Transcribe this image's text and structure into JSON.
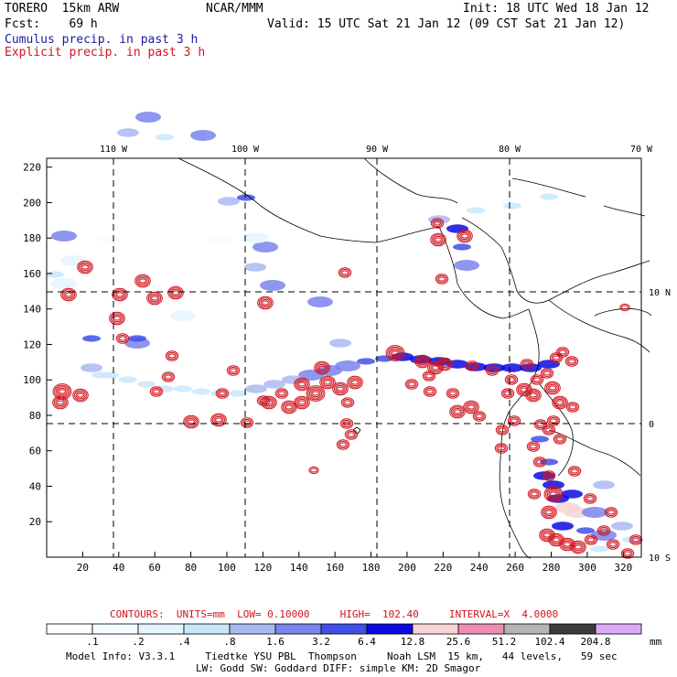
{
  "header": {
    "model": "TORERO  15km ARW",
    "org": "NCAR/MMM",
    "init": "Init: 18 UTC Wed 18 Jan 12",
    "fcst": "Fcst:    69 h",
    "valid": "Valid: 15 UTC Sat 21 Jan 12 (09 CST Sat 21 Jan 12)",
    "line1": "Cumulus precip. in past 3 h",
    "line2": "Explicit precip. in past 3 h",
    "line1_color": "#1a1aa0",
    "line2_color": "#d0141e"
  },
  "chart_data": {
    "type": "heatmap",
    "title": "",
    "xlim": [
      0,
      330
    ],
    "ylim": [
      0,
      225
    ],
    "x_ticks": [
      "20",
      "40",
      "60",
      "80",
      "100",
      "120",
      "140",
      "160",
      "180",
      "200",
      "220",
      "240",
      "260",
      "280",
      "300",
      "320"
    ],
    "y_ticks": [
      "20",
      "40",
      "60",
      "80",
      "100",
      "120",
      "140",
      "160",
      "180",
      "200",
      "220"
    ],
    "lon_labels": [
      "110 W",
      "100 W",
      "90 W",
      "80 W",
      "70 W"
    ],
    "lat_labels": [
      "10 N",
      "0",
      "10 S"
    ],
    "contours": {
      "label": "CONTOURS:  UNITS=mm  LOW= 0.10000     HIGH=  102.40     INTERVAL=X  4.0000"
    },
    "colorbar": {
      "levels": [
        ".1",
        ".2",
        ".4",
        ".8",
        "1.6",
        "3.2",
        "6.4",
        "12.8",
        "25.6",
        "51.2",
        "102.4",
        "204.8"
      ],
      "units": "mm",
      "colors": [
        "#ffffff",
        "#f4fbff",
        "#e4f4ff",
        "#c9e6fb",
        "#aab8f2",
        "#7a84ec",
        "#4050e8",
        "#0a0ae0",
        "#f8d4d4",
        "#f08cb4",
        "#b4b4b4",
        "#3c3c3c",
        "#dca8f8"
      ]
    },
    "cells": [
      [
        70,
        258,
        5
      ],
      [
        140,
        145,
        4
      ],
      [
        162,
        128,
        5
      ],
      [
        180,
        150,
        3
      ],
      [
        222,
        148,
        5
      ],
      [
        250,
        220,
        4
      ],
      [
        279,
        292,
        4
      ],
      [
        269,
        216,
        6
      ],
      [
        290,
        270,
        5
      ],
      [
        298,
        312,
        5
      ],
      [
        350,
        330,
        5
      ],
      [
        372,
        375,
        4
      ],
      [
        280,
        260,
        2
      ],
      [
        240,
        262,
        1
      ],
      [
        80,
        285,
        2
      ],
      [
        120,
        262,
        1
      ],
      [
        100,
        402,
        4
      ],
      [
        120,
        410,
        3
      ],
      [
        150,
        375,
        5
      ],
      [
        150,
        370,
        6
      ],
      [
        100,
        370,
        6
      ],
      [
        60,
        300,
        3
      ],
      [
        70,
        310,
        2
      ],
      [
        200,
        345,
        2
      ],
      [
        400,
        395,
        6
      ],
      [
        420,
        392,
        6
      ],
      [
        440,
        390,
        7
      ],
      [
        460,
        393,
        7
      ],
      [
        480,
        395,
        7
      ],
      [
        500,
        398,
        7
      ],
      [
        520,
        401,
        7
      ],
      [
        540,
        402,
        7
      ],
      [
        560,
        402,
        7
      ],
      [
        580,
        402,
        7
      ],
      [
        600,
        398,
        7
      ],
      [
        380,
        400,
        5
      ],
      [
        360,
        405,
        5
      ],
      [
        340,
        410,
        5
      ],
      [
        320,
        415,
        4
      ],
      [
        300,
        420,
        4
      ],
      [
        280,
        425,
        4
      ],
      [
        260,
        430,
        3
      ],
      [
        240,
        430,
        3
      ],
      [
        220,
        428,
        3
      ],
      [
        200,
        425,
        3
      ],
      [
        180,
        425,
        3
      ],
      [
        160,
        420,
        3
      ],
      [
        140,
        415,
        3
      ],
      [
        110,
        410,
        3
      ],
      [
        500,
        250,
        7
      ],
      [
        505,
        270,
        6
      ],
      [
        510,
        290,
        5
      ],
      [
        480,
        240,
        4
      ],
      [
        520,
        230,
        3
      ],
      [
        560,
        225,
        3
      ],
      [
        600,
        215,
        3
      ],
      [
        590,
        480,
        6
      ],
      [
        595,
        520,
        7
      ],
      [
        610,
        545,
        7
      ],
      [
        620,
        555,
        8
      ],
      [
        630,
        560,
        8
      ],
      [
        615,
        575,
        7
      ],
      [
        640,
        580,
        6
      ],
      [
        660,
        585,
        5
      ],
      [
        600,
        505,
        6
      ],
      [
        605,
        530,
        7
      ],
      [
        625,
        540,
        7
      ],
      [
        650,
        560,
        5
      ],
      [
        680,
        575,
        4
      ],
      [
        690,
        590,
        3
      ],
      [
        655,
        600,
        3
      ],
      [
        660,
        530,
        4
      ]
    ],
    "explicit_rings": [
      [
        93,
        292,
        4
      ],
      [
        75,
        322,
        4
      ],
      [
        131,
        322,
        4
      ],
      [
        169,
        326,
        4
      ],
      [
        192,
        320,
        4
      ],
      [
        128,
        348,
        4
      ],
      [
        156,
        307,
        4
      ],
      [
        134,
        370,
        3
      ],
      [
        290,
        331,
        4
      ],
      [
        188,
        389,
        3
      ],
      [
        255,
        405,
        3
      ],
      [
        184,
        412,
        3
      ],
      [
        171,
        428,
        3
      ],
      [
        68,
        428,
        5
      ],
      [
        88,
        432,
        4
      ],
      [
        66,
        440,
        4
      ],
      [
        209,
        461,
        4
      ],
      [
        239,
        459,
        4
      ],
      [
        270,
        462,
        3
      ],
      [
        243,
        430,
        3
      ],
      [
        294,
        440,
        4
      ],
      [
        316,
        445,
        4
      ],
      [
        330,
        440,
        4
      ],
      [
        345,
        430,
        5
      ],
      [
        358,
        418,
        4
      ],
      [
        372,
        425,
        4
      ],
      [
        388,
        418,
        4
      ],
      [
        380,
        440,
        3
      ],
      [
        352,
        402,
        4
      ],
      [
        330,
        420,
        4
      ],
      [
        308,
        430,
        3
      ],
      [
        288,
        438,
        3
      ],
      [
        379,
        463,
        3
      ],
      [
        384,
        475,
        3
      ],
      [
        375,
        486,
        3
      ],
      [
        343,
        514,
        2
      ],
      [
        432,
        386,
        5
      ],
      [
        462,
        395,
        4
      ],
      [
        476,
        402,
        4
      ],
      [
        486,
        398,
        4
      ],
      [
        469,
        411,
        3
      ],
      [
        470,
        428,
        3
      ],
      [
        450,
        420,
        3
      ],
      [
        495,
        430,
        3
      ],
      [
        515,
        445,
        4
      ],
      [
        500,
        450,
        4
      ],
      [
        524,
        455,
        3
      ],
      [
        516,
        400,
        3
      ],
      [
        538,
        405,
        3
      ],
      [
        559,
        415,
        3
      ],
      [
        576,
        398,
        3
      ],
      [
        555,
        430,
        3
      ],
      [
        583,
        432,
        4
      ],
      [
        573,
        426,
        4
      ],
      [
        587,
        415,
        3
      ],
      [
        604,
        424,
        4
      ],
      [
        598,
        408,
        3
      ],
      [
        608,
        391,
        3
      ],
      [
        615,
        385,
        3
      ],
      [
        625,
        395,
        3
      ],
      [
        612,
        440,
        4
      ],
      [
        626,
        445,
        3
      ],
      [
        605,
        460,
        3
      ],
      [
        591,
        464,
        3
      ],
      [
        562,
        460,
        3
      ],
      [
        549,
        470,
        3
      ],
      [
        548,
        490,
        3
      ],
      [
        583,
        488,
        3
      ],
      [
        590,
        505,
        3
      ],
      [
        600,
        520,
        3
      ],
      [
        584,
        540,
        3
      ],
      [
        605,
        540,
        5
      ],
      [
        600,
        560,
        4
      ],
      [
        598,
        585,
        4
      ],
      [
        608,
        590,
        4
      ],
      [
        620,
        595,
        4
      ],
      [
        632,
        598,
        4
      ],
      [
        646,
        590,
        3
      ],
      [
        660,
        580,
        3
      ],
      [
        670,
        595,
        3
      ],
      [
        686,
        605,
        3
      ],
      [
        695,
        590,
        3
      ],
      [
        478,
        244,
        3
      ],
      [
        479,
        262,
        4
      ],
      [
        508,
        258,
        4
      ],
      [
        483,
        305,
        3
      ],
      [
        377,
        298,
        3
      ],
      [
        683,
        336,
        2
      ],
      [
        628,
        515,
        3
      ],
      [
        645,
        545,
        3
      ],
      [
        668,
        560,
        3
      ],
      [
        612,
        480,
        3
      ],
      [
        600,
        470,
        3
      ]
    ]
  },
  "footer": {
    "info1": "Model Info: V3.3.1     Tiedtke YSU PBL  Thompson     Noah LSM  15 km,   44 levels,   59 sec",
    "info2": "LW: Godd SW: Goddard DIFF: simple KM: 2D Smagor"
  }
}
